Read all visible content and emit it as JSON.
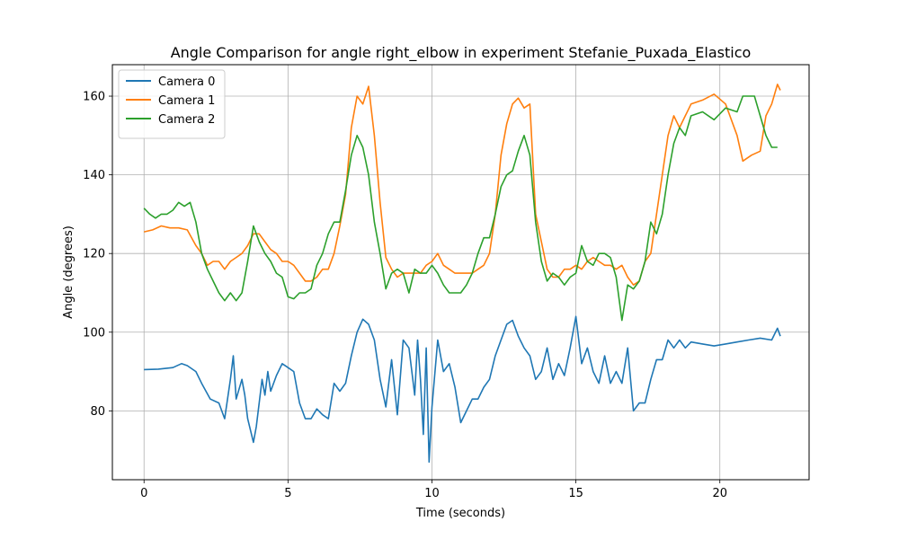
{
  "chart_data": {
    "type": "line",
    "title": "Angle Comparison for angle right_elbow in experiment Stefanie_Puxada_Elastico",
    "xlabel": "Time (seconds)",
    "ylabel": "Angle (degrees)",
    "xlim": [
      -1.1,
      23.1
    ],
    "ylim": [
      62.5,
      168
    ],
    "xticks": [
      0,
      5,
      10,
      15,
      20
    ],
    "yticks": [
      80,
      100,
      120,
      140,
      160
    ],
    "grid": true,
    "legend_position": "top-left",
    "series": [
      {
        "name": "Camera 0",
        "color": "#1f77b4",
        "points": [
          [
            0,
            90.5
          ],
          [
            0.5,
            90.6
          ],
          [
            1,
            91
          ],
          [
            1.3,
            92
          ],
          [
            1.5,
            91.5
          ],
          [
            1.8,
            90
          ],
          [
            2,
            87
          ],
          [
            2.3,
            83
          ],
          [
            2.6,
            82
          ],
          [
            2.8,
            78
          ],
          [
            3,
            88
          ],
          [
            3.1,
            94
          ],
          [
            3.2,
            83
          ],
          [
            3.4,
            88
          ],
          [
            3.5,
            84
          ],
          [
            3.6,
            78
          ],
          [
            3.8,
            72
          ],
          [
            3.9,
            76
          ],
          [
            4.1,
            88
          ],
          [
            4.2,
            84
          ],
          [
            4.3,
            90
          ],
          [
            4.4,
            85
          ],
          [
            4.6,
            89
          ],
          [
            4.8,
            92
          ],
          [
            5,
            91
          ],
          [
            5.2,
            90
          ],
          [
            5.4,
            82
          ],
          [
            5.6,
            78
          ],
          [
            5.8,
            78
          ],
          [
            6,
            80.5
          ],
          [
            6.2,
            79
          ],
          [
            6.4,
            78
          ],
          [
            6.6,
            87
          ],
          [
            6.8,
            85
          ],
          [
            7,
            87
          ],
          [
            7.2,
            94
          ],
          [
            7.4,
            100
          ],
          [
            7.6,
            103.3
          ],
          [
            7.8,
            102
          ],
          [
            8,
            98
          ],
          [
            8.2,
            88
          ],
          [
            8.4,
            81
          ],
          [
            8.6,
            93
          ],
          [
            8.8,
            79
          ],
          [
            9,
            98
          ],
          [
            9.2,
            96
          ],
          [
            9.4,
            84
          ],
          [
            9.5,
            98
          ],
          [
            9.6,
            88
          ],
          [
            9.7,
            74
          ],
          [
            9.8,
            96
          ],
          [
            9.9,
            67
          ],
          [
            10,
            81
          ],
          [
            10.2,
            98
          ],
          [
            10.4,
            90
          ],
          [
            10.6,
            92
          ],
          [
            10.8,
            86
          ],
          [
            11,
            77
          ],
          [
            11.2,
            80
          ],
          [
            11.4,
            83
          ],
          [
            11.6,
            83
          ],
          [
            11.8,
            86
          ],
          [
            12,
            88
          ],
          [
            12.2,
            94
          ],
          [
            12.4,
            98
          ],
          [
            12.6,
            102
          ],
          [
            12.8,
            103
          ],
          [
            13,
            99
          ],
          [
            13.2,
            96
          ],
          [
            13.4,
            94
          ],
          [
            13.6,
            88
          ],
          [
            13.8,
            90
          ],
          [
            14,
            96
          ],
          [
            14.2,
            88
          ],
          [
            14.4,
            92
          ],
          [
            14.6,
            89
          ],
          [
            14.8,
            96
          ],
          [
            15,
            104
          ],
          [
            15.2,
            92
          ],
          [
            15.4,
            96
          ],
          [
            15.6,
            90
          ],
          [
            15.8,
            87
          ],
          [
            16,
            94
          ],
          [
            16.2,
            87
          ],
          [
            16.4,
            90
          ],
          [
            16.6,
            87
          ],
          [
            16.8,
            96
          ],
          [
            17,
            80
          ],
          [
            17.2,
            82
          ],
          [
            17.4,
            82
          ],
          [
            17.6,
            88
          ],
          [
            17.8,
            93
          ],
          [
            18,
            93
          ],
          [
            18.2,
            98
          ],
          [
            18.4,
            96
          ],
          [
            18.6,
            98
          ],
          [
            18.8,
            96
          ],
          [
            19,
            97.5
          ],
          [
            19.4,
            97
          ],
          [
            19.8,
            96.5
          ],
          [
            20.2,
            97
          ],
          [
            20.6,
            97.5
          ],
          [
            21,
            98
          ],
          [
            21.4,
            98.5
          ],
          [
            21.8,
            98
          ],
          [
            22,
            101
          ],
          [
            22.1,
            99
          ]
        ]
      },
      {
        "name": "Camera 1",
        "color": "#ff7f0e",
        "points": [
          [
            0,
            125.5
          ],
          [
            0.3,
            126
          ],
          [
            0.6,
            127
          ],
          [
            0.9,
            126.5
          ],
          [
            1.2,
            126.5
          ],
          [
            1.5,
            126
          ],
          [
            1.8,
            122
          ],
          [
            2,
            120
          ],
          [
            2.2,
            117
          ],
          [
            2.4,
            118
          ],
          [
            2.6,
            118
          ],
          [
            2.8,
            116
          ],
          [
            3,
            118
          ],
          [
            3.2,
            119
          ],
          [
            3.4,
            120
          ],
          [
            3.6,
            122
          ],
          [
            3.8,
            125
          ],
          [
            4,
            125
          ],
          [
            4.2,
            123
          ],
          [
            4.4,
            121
          ],
          [
            4.6,
            120
          ],
          [
            4.8,
            118
          ],
          [
            5,
            118
          ],
          [
            5.2,
            117
          ],
          [
            5.4,
            115
          ],
          [
            5.6,
            113
          ],
          [
            5.8,
            113
          ],
          [
            6,
            114
          ],
          [
            6.2,
            116
          ],
          [
            6.4,
            116
          ],
          [
            6.6,
            120
          ],
          [
            6.8,
            127
          ],
          [
            7,
            135
          ],
          [
            7.2,
            152
          ],
          [
            7.4,
            160
          ],
          [
            7.6,
            158
          ],
          [
            7.8,
            162.5
          ],
          [
            8,
            150
          ],
          [
            8.2,
            133
          ],
          [
            8.4,
            119
          ],
          [
            8.6,
            116
          ],
          [
            8.8,
            114
          ],
          [
            9,
            115
          ],
          [
            9.2,
            115
          ],
          [
            9.4,
            115
          ],
          [
            9.6,
            115
          ],
          [
            9.8,
            117
          ],
          [
            10,
            118
          ],
          [
            10.2,
            120
          ],
          [
            10.4,
            117
          ],
          [
            10.6,
            116
          ],
          [
            10.8,
            115
          ],
          [
            11,
            115
          ],
          [
            11.2,
            115
          ],
          [
            11.4,
            115
          ],
          [
            11.6,
            116
          ],
          [
            11.8,
            117
          ],
          [
            12,
            120
          ],
          [
            12.2,
            130
          ],
          [
            12.4,
            145
          ],
          [
            12.6,
            153
          ],
          [
            12.8,
            158
          ],
          [
            13,
            159.5
          ],
          [
            13.2,
            157
          ],
          [
            13.4,
            158
          ],
          [
            13.6,
            130
          ],
          [
            13.8,
            123
          ],
          [
            14,
            116
          ],
          [
            14.2,
            114
          ],
          [
            14.4,
            114
          ],
          [
            14.6,
            116
          ],
          [
            14.8,
            116
          ],
          [
            15,
            117
          ],
          [
            15.2,
            116
          ],
          [
            15.4,
            118
          ],
          [
            15.6,
            119
          ],
          [
            15.8,
            118
          ],
          [
            16,
            117
          ],
          [
            16.2,
            117
          ],
          [
            16.4,
            116
          ],
          [
            16.6,
            117
          ],
          [
            16.8,
            114
          ],
          [
            17,
            112
          ],
          [
            17.2,
            113
          ],
          [
            17.4,
            118
          ],
          [
            17.6,
            120
          ],
          [
            17.8,
            130
          ],
          [
            18,
            140
          ],
          [
            18.2,
            150
          ],
          [
            18.4,
            155
          ],
          [
            18.6,
            152
          ],
          [
            18.8,
            155
          ],
          [
            19,
            158
          ],
          [
            19.4,
            159
          ],
          [
            19.8,
            160.5
          ],
          [
            20.2,
            158
          ],
          [
            20.6,
            150
          ],
          [
            20.8,
            143.5
          ],
          [
            21.1,
            145
          ],
          [
            21.4,
            146
          ],
          [
            21.6,
            155
          ],
          [
            21.8,
            158
          ],
          [
            22,
            163
          ],
          [
            22.1,
            161.5
          ]
        ]
      },
      {
        "name": "Camera 2",
        "color": "#2ca02c",
        "points": [
          [
            0,
            131.5
          ],
          [
            0.2,
            130
          ],
          [
            0.4,
            129
          ],
          [
            0.6,
            130
          ],
          [
            0.8,
            130
          ],
          [
            1,
            131
          ],
          [
            1.2,
            133
          ],
          [
            1.4,
            132
          ],
          [
            1.6,
            133
          ],
          [
            1.8,
            128
          ],
          [
            2,
            120
          ],
          [
            2.2,
            116
          ],
          [
            2.4,
            113
          ],
          [
            2.6,
            110
          ],
          [
            2.8,
            108
          ],
          [
            3,
            110
          ],
          [
            3.2,
            108
          ],
          [
            3.4,
            110
          ],
          [
            3.6,
            118
          ],
          [
            3.8,
            127
          ],
          [
            4,
            123
          ],
          [
            4.2,
            120
          ],
          [
            4.4,
            118
          ],
          [
            4.6,
            115
          ],
          [
            4.8,
            114
          ],
          [
            5,
            109
          ],
          [
            5.2,
            108.5
          ],
          [
            5.4,
            110
          ],
          [
            5.6,
            110
          ],
          [
            5.8,
            111
          ],
          [
            6,
            117
          ],
          [
            6.2,
            120
          ],
          [
            6.4,
            125
          ],
          [
            6.6,
            128
          ],
          [
            6.8,
            128
          ],
          [
            7,
            136
          ],
          [
            7.2,
            145
          ],
          [
            7.4,
            150
          ],
          [
            7.6,
            147
          ],
          [
            7.8,
            140
          ],
          [
            8,
            128
          ],
          [
            8.2,
            120
          ],
          [
            8.4,
            111
          ],
          [
            8.6,
            115
          ],
          [
            8.8,
            116
          ],
          [
            9,
            115
          ],
          [
            9.2,
            110
          ],
          [
            9.4,
            116
          ],
          [
            9.6,
            115
          ],
          [
            9.8,
            115
          ],
          [
            10,
            117
          ],
          [
            10.2,
            115
          ],
          [
            10.4,
            112
          ],
          [
            10.6,
            110
          ],
          [
            10.8,
            110
          ],
          [
            11,
            110
          ],
          [
            11.2,
            112
          ],
          [
            11.4,
            115
          ],
          [
            11.6,
            120
          ],
          [
            11.8,
            124
          ],
          [
            12,
            124
          ],
          [
            12.2,
            130
          ],
          [
            12.4,
            137
          ],
          [
            12.6,
            140
          ],
          [
            12.8,
            141
          ],
          [
            13,
            146
          ],
          [
            13.2,
            150
          ],
          [
            13.4,
            145
          ],
          [
            13.6,
            128
          ],
          [
            13.8,
            118
          ],
          [
            14,
            113
          ],
          [
            14.2,
            115
          ],
          [
            14.4,
            114
          ],
          [
            14.6,
            112
          ],
          [
            14.8,
            114
          ],
          [
            15,
            115
          ],
          [
            15.2,
            122
          ],
          [
            15.4,
            118
          ],
          [
            15.6,
            117
          ],
          [
            15.8,
            120
          ],
          [
            16,
            120
          ],
          [
            16.2,
            119
          ],
          [
            16.4,
            114
          ],
          [
            16.6,
            103
          ],
          [
            16.8,
            112
          ],
          [
            17,
            111
          ],
          [
            17.2,
            113
          ],
          [
            17.4,
            118
          ],
          [
            17.6,
            128
          ],
          [
            17.8,
            125
          ],
          [
            18,
            130
          ],
          [
            18.2,
            140
          ],
          [
            18.4,
            148
          ],
          [
            18.6,
            152
          ],
          [
            18.8,
            150
          ],
          [
            19,
            155
          ],
          [
            19.4,
            156
          ],
          [
            19.8,
            154
          ],
          [
            20.2,
            157
          ],
          [
            20.6,
            156
          ],
          [
            20.8,
            160
          ],
          [
            21.2,
            160
          ],
          [
            21.4,
            155
          ],
          [
            21.6,
            150
          ],
          [
            21.8,
            147
          ],
          [
            22,
            147
          ]
        ]
      }
    ]
  }
}
